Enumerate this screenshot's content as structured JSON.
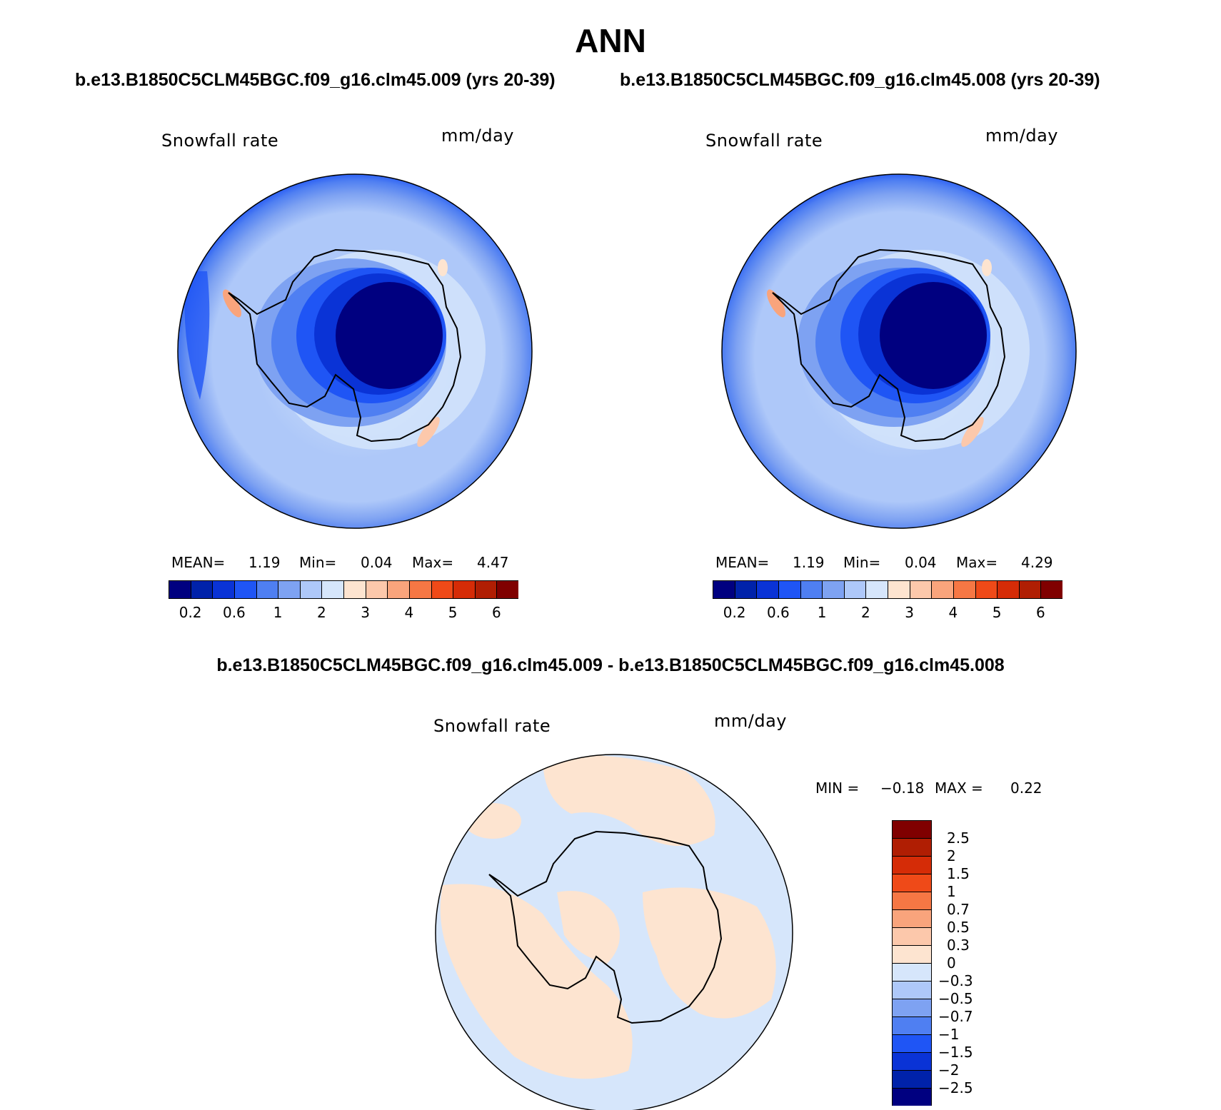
{
  "figure": {
    "title": "ANN",
    "left_case": "b.e13.B1850C5CLM45BGC.f09_g16.clm45.009 (yrs 20-39)",
    "right_case": "b.e13.B1850C5CLM45BGC.f09_g16.clm45.008 (yrs 20-39)",
    "diff_title": "b.e13.B1850C5CLM45BGC.f09_g16.clm45.009 - b.e13.B1850C5CLM45BGC.f09_g16.clm45.008"
  },
  "chart_data": [
    {
      "type": "heatmap",
      "projection": "south polar stereographic",
      "variable": "Snowfall rate",
      "units": "mm/day",
      "stats": {
        "mean_label": "MEAN=",
        "mean": "1.19",
        "min_label": "Min=",
        "min": "0.04",
        "max_label": "Max=",
        "max": "4.47"
      },
      "colorbar": {
        "orientation": "horizontal",
        "tick_labels": [
          "0.2",
          "0.6",
          "1",
          "2",
          "3",
          "4",
          "5",
          "6"
        ],
        "colors": [
          "#000080",
          "#0022aa",
          "#0a33d6",
          "#1f55f5",
          "#4f7ff2",
          "#7ea2f2",
          "#aec8f9",
          "#d6e6fb",
          "#fde4d0",
          "#fcc8ab",
          "#f9a47c",
          "#f67744",
          "#ef4a18",
          "#d52c07",
          "#b01e03",
          "#800000"
        ]
      }
    },
    {
      "type": "heatmap",
      "projection": "south polar stereographic",
      "variable": "Snowfall rate",
      "units": "mm/day",
      "stats": {
        "mean_label": "MEAN=",
        "mean": "1.19",
        "min_label": "Min=",
        "min": "0.04",
        "max_label": "Max=",
        "max": "4.29"
      },
      "colorbar": {
        "orientation": "horizontal",
        "tick_labels": [
          "0.2",
          "0.6",
          "1",
          "2",
          "3",
          "4",
          "5",
          "6"
        ],
        "colors": [
          "#000080",
          "#0022aa",
          "#0a33d6",
          "#1f55f5",
          "#4f7ff2",
          "#7ea2f2",
          "#aec8f9",
          "#d6e6fb",
          "#fde4d0",
          "#fcc8ab",
          "#f9a47c",
          "#f67744",
          "#ef4a18",
          "#d52c07",
          "#b01e03",
          "#800000"
        ]
      }
    },
    {
      "type": "heatmap",
      "projection": "south polar stereographic",
      "variable": "Snowfall rate",
      "units": "mm/day",
      "stats": {
        "min_label": "MIN =",
        "min": "−0.18",
        "max_label": "MAX =",
        "max": "0.22"
      },
      "colorbar": {
        "orientation": "vertical",
        "tick_labels": [
          "2.5",
          "2",
          "1.5",
          "1",
          "0.7",
          "0.5",
          "0.3",
          "0",
          "−0.3",
          "−0.5",
          "−0.7",
          "−1",
          "−1.5",
          "−2",
          "−2.5"
        ],
        "colors": [
          "#800000",
          "#b01e03",
          "#d52c07",
          "#ef4a18",
          "#f67744",
          "#f9a47c",
          "#fcc8ab",
          "#fde4d0",
          "#d6e6fb",
          "#aec8f9",
          "#7ea2f2",
          "#4f7ff2",
          "#1f55f5",
          "#0a33d6",
          "#0022aa",
          "#000080"
        ]
      }
    }
  ]
}
